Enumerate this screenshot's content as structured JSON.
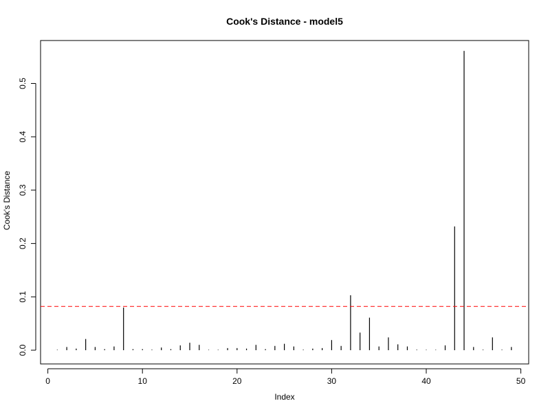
{
  "chart_data": {
    "type": "bar",
    "title": "Cook's Distance - model5",
    "xlabel": "Index",
    "ylabel": "Cook's Distance",
    "xlim": [
      0,
      50
    ],
    "ylim": [
      0,
      0.55
    ],
    "x_ticks": [
      0,
      10,
      20,
      30,
      40,
      50
    ],
    "y_ticks": [
      0.0,
      0.1,
      0.2,
      0.3,
      0.4,
      0.5
    ],
    "x_tick_labels": [
      "0",
      "10",
      "20",
      "30",
      "40",
      "50"
    ],
    "y_tick_labels": [
      "0.0",
      "0.1",
      "0.2",
      "0.3",
      "0.4",
      "0.5"
    ],
    "x": [
      1,
      2,
      3,
      4,
      5,
      6,
      7,
      8,
      9,
      10,
      11,
      12,
      13,
      14,
      15,
      16,
      17,
      18,
      19,
      20,
      21,
      22,
      23,
      24,
      25,
      26,
      27,
      28,
      29,
      30,
      31,
      32,
      33,
      34,
      35,
      36,
      37,
      38,
      39,
      40,
      41,
      42,
      43,
      44,
      45,
      46,
      47,
      48,
      49
    ],
    "values": [
      0.0008,
      0.006,
      0.003,
      0.021,
      0.006,
      0.002,
      0.007,
      0.08,
      0.002,
      0.002,
      0.001,
      0.005,
      0.002,
      0.009,
      0.014,
      0.01,
      0.0008,
      0.0008,
      0.004,
      0.004,
      0.003,
      0.01,
      0.002,
      0.008,
      0.012,
      0.007,
      0.001,
      0.003,
      0.004,
      0.019,
      0.008,
      0.103,
      0.033,
      0.061,
      0.007,
      0.024,
      0.011,
      0.007,
      0.001,
      0.0008,
      0.0008,
      0.009,
      0.232,
      0.561,
      0.006,
      0.001,
      0.024,
      0.001,
      0.006
    ],
    "reference_line": {
      "y": 0.082,
      "color": "#ff0000",
      "style": "dashed"
    },
    "bar_color": "#000000",
    "grid": false,
    "legend": "none"
  }
}
